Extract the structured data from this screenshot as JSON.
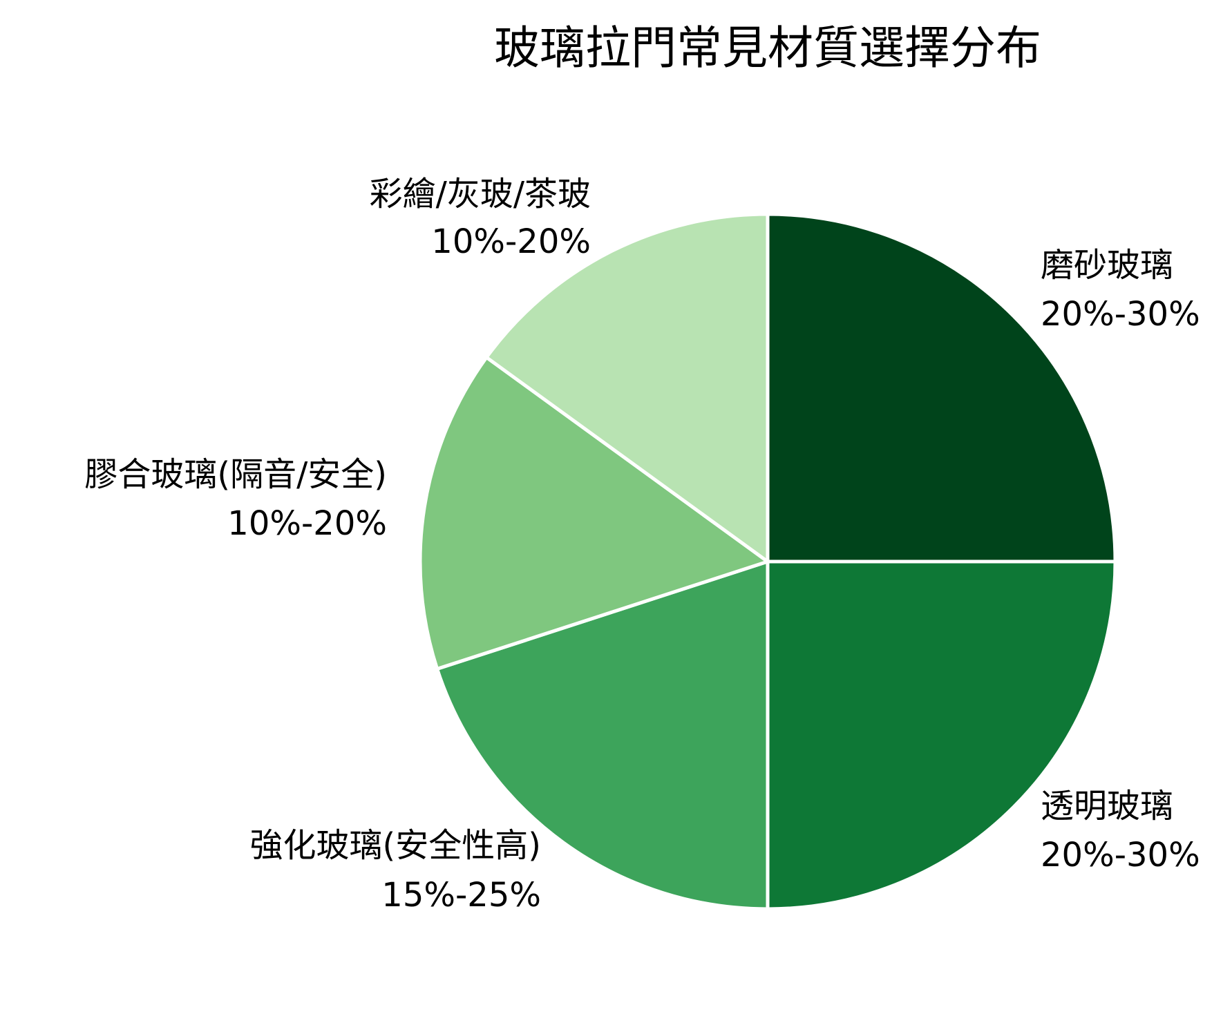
{
  "chart_data": {
    "type": "pie",
    "title": "玻璃拉門常見材質選擇分布",
    "start_angle": "top, clockwise",
    "slices": [
      {
        "label": "磨砂玻璃",
        "range": "20%-30%",
        "value": 25,
        "color": "#00441b"
      },
      {
        "label": "透明玻璃",
        "range": "20%-30%",
        "value": 25,
        "color": "#0e7836"
      },
      {
        "label": "強化玻璃(安全性高)",
        "range": "15%-25%",
        "value": 20,
        "color": "#3da45b"
      },
      {
        "label": "膠合玻璃(隔音/安全)",
        "range": "10%-20%",
        "value": 15,
        "color": "#7fc77f"
      },
      {
        "label": "彩繪/灰玻/茶玻",
        "range": "10%-20%",
        "value": 15,
        "color": "#b8e3b2"
      }
    ],
    "legend": "none"
  }
}
